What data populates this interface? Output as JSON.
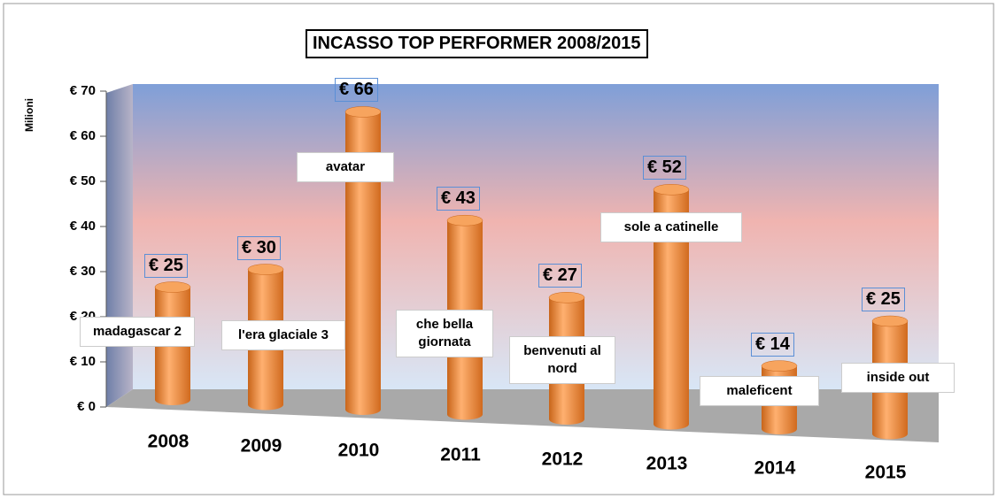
{
  "chart_data": {
    "type": "bar",
    "title": "INCASSO TOP PERFORMER 2008/2015",
    "y_label": "Milioni",
    "categories": [
      "2008",
      "2009",
      "2010",
      "2011",
      "2012",
      "2013",
      "2014",
      "2015"
    ],
    "values": [
      25,
      30,
      66,
      43,
      27,
      52,
      14,
      25
    ],
    "value_labels": [
      "€ 25",
      "€ 30",
      "€ 66",
      "€ 43",
      "€ 27",
      "€ 52",
      "€ 14",
      "€ 25"
    ],
    "annotations": [
      "madagascar 2",
      "l'era glaciale 3",
      "avatar",
      "che bella giornata",
      "benvenuti al nord",
      "sole a catinelle",
      "maleficent",
      "inside out"
    ],
    "color": "#f0903a",
    "ylim": [
      0,
      70
    ],
    "yticks": [
      {
        "value": 0,
        "label": "€ 0"
      },
      {
        "value": 10,
        "label": "€ 10"
      },
      {
        "value": 20,
        "label": "€ 20"
      },
      {
        "value": 30,
        "label": "€ 30"
      },
      {
        "value": 40,
        "label": "€ 40"
      },
      {
        "value": 50,
        "label": "€ 50"
      },
      {
        "value": 60,
        "label": "€ 60"
      },
      {
        "value": 70,
        "label": "€ 70"
      }
    ]
  }
}
